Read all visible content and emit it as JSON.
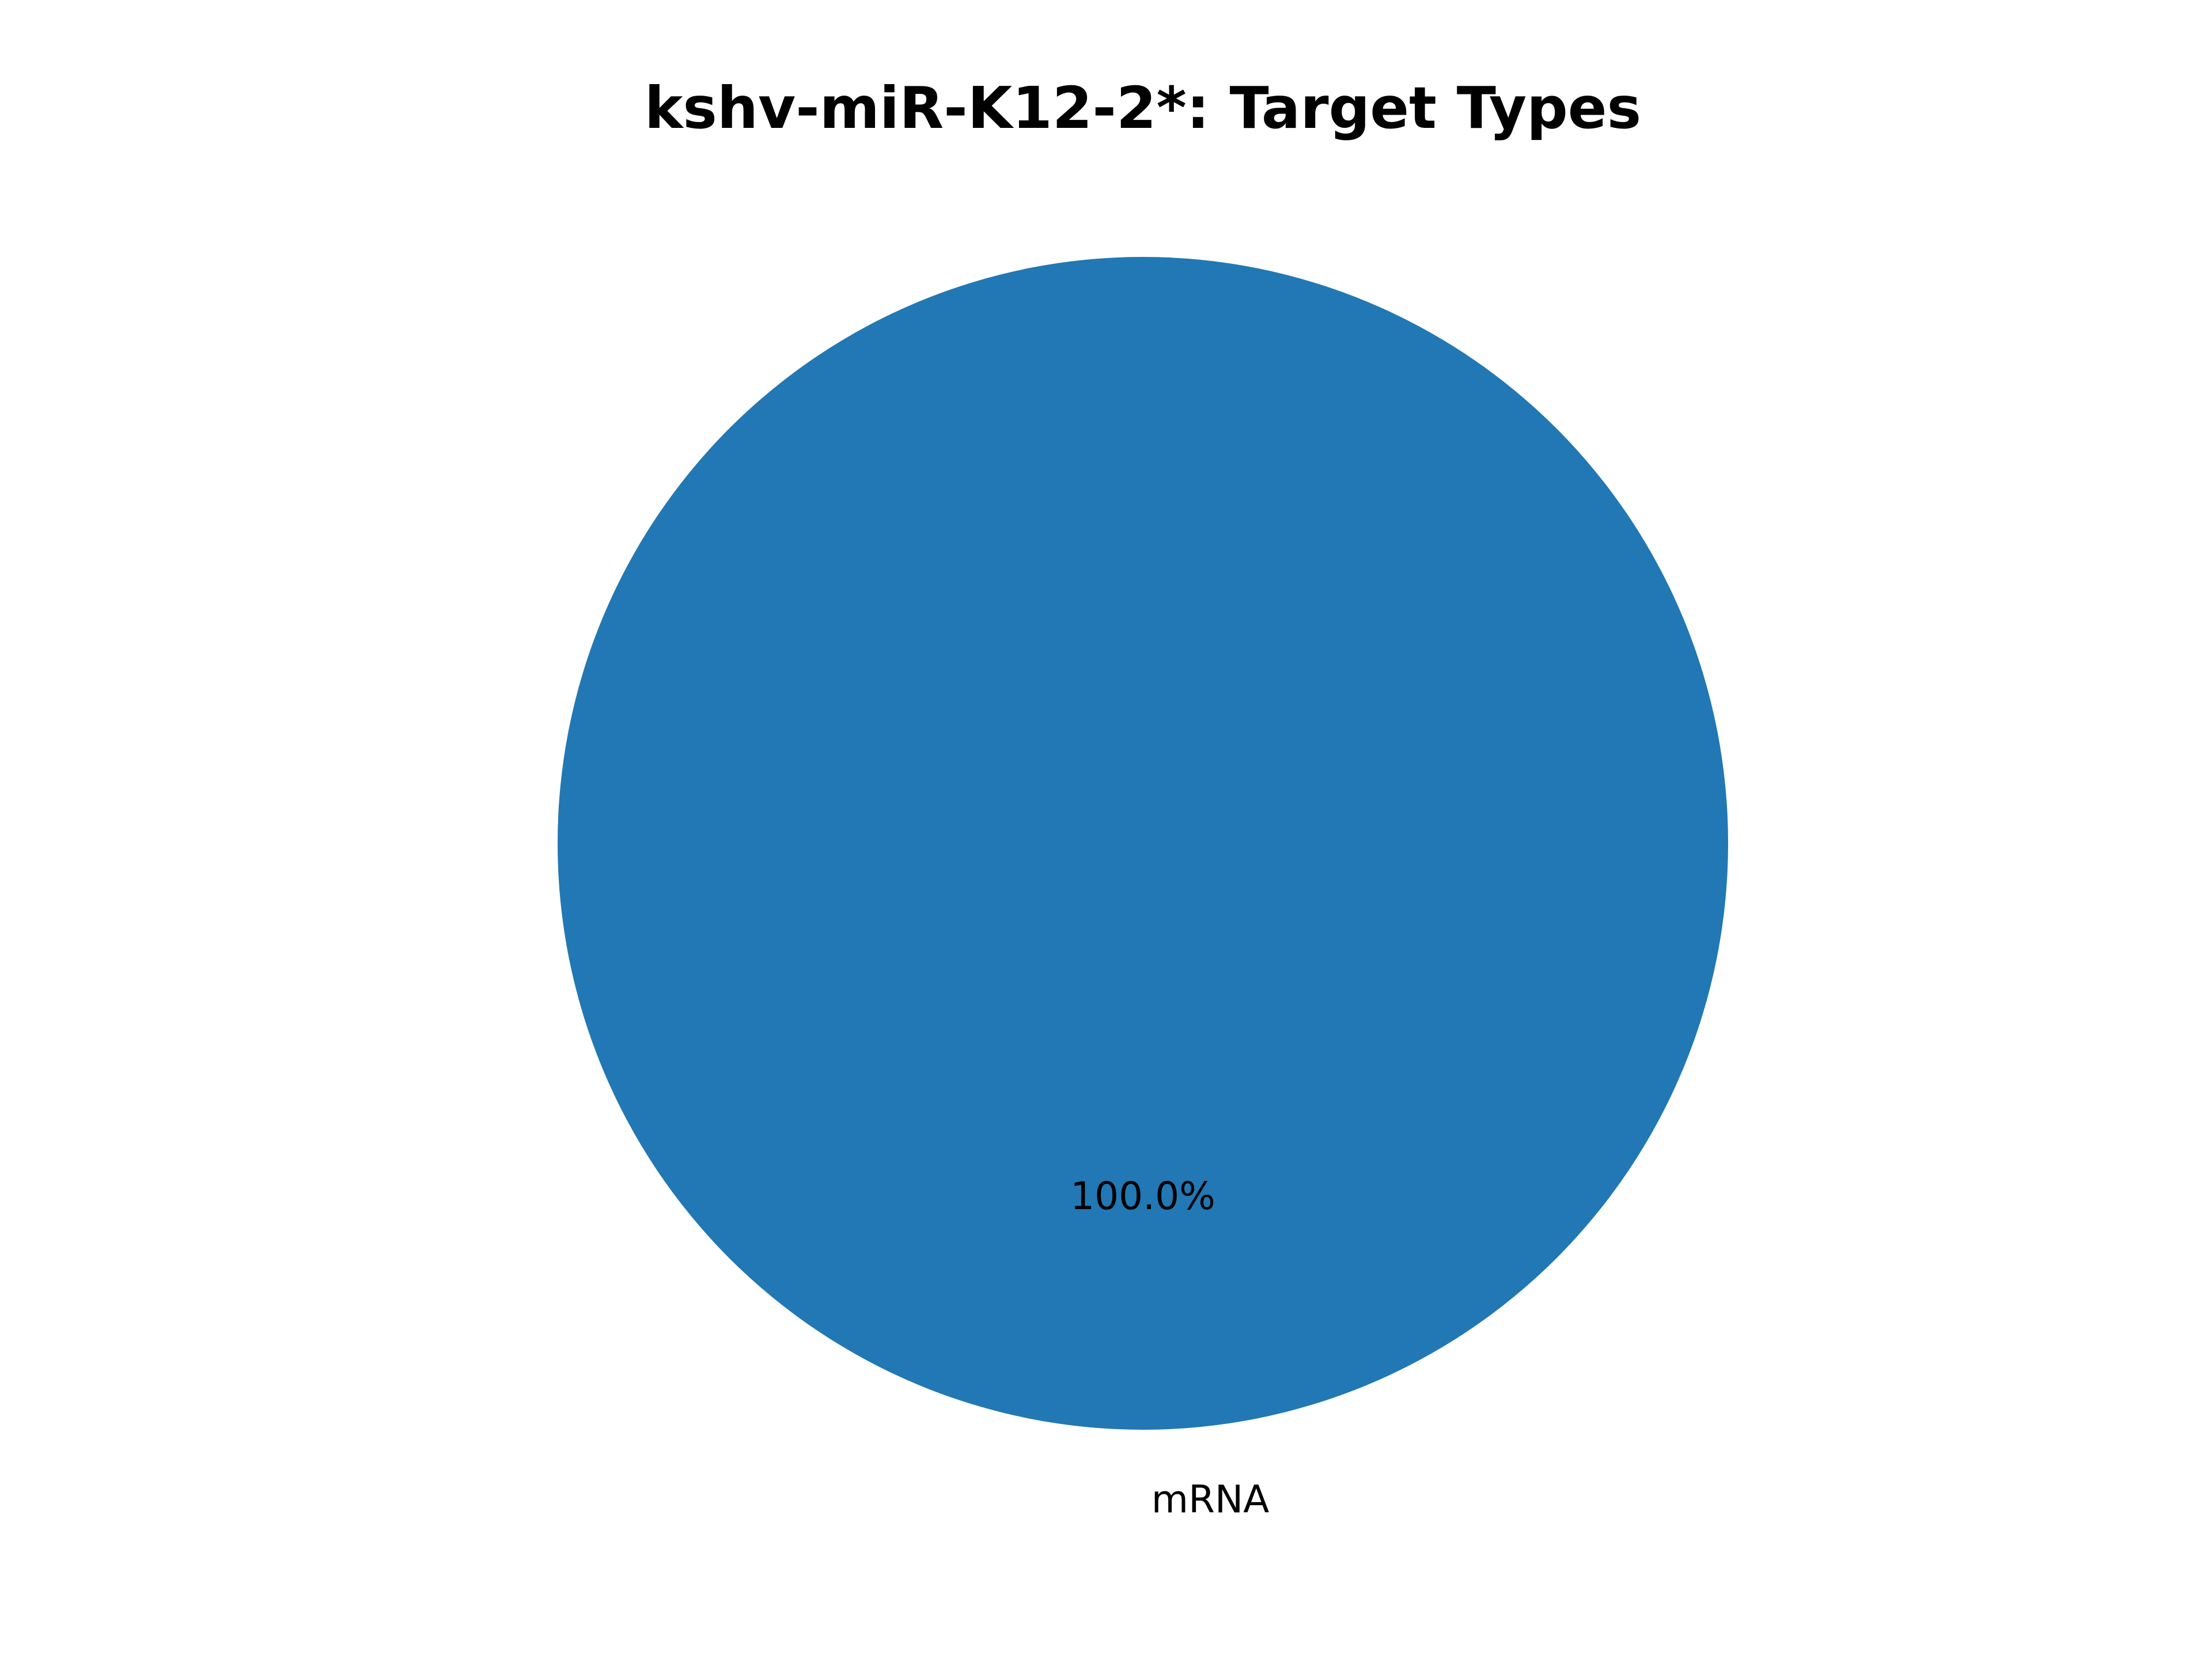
{
  "chart_data": {
    "type": "pie",
    "title": "kshv-miR-K12-2*: Target Types",
    "slices": [
      {
        "label": "mRNA",
        "value": 100.0,
        "percent_label": "100.0%",
        "color": "#2178b4"
      }
    ],
    "legend": "none"
  }
}
